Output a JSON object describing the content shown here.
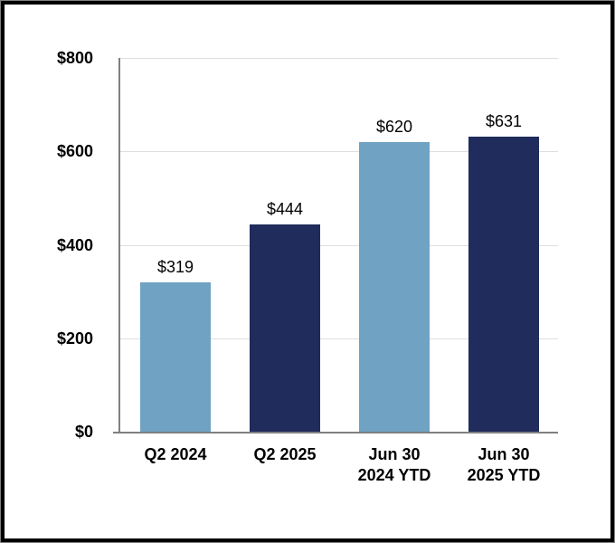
{
  "chart_data": {
    "type": "bar",
    "categories": [
      "Q2 2024",
      "Q2 2025",
      "Jun 30\n2024 YTD",
      "Jun 30\n2025 YTD"
    ],
    "values": [
      319,
      444,
      620,
      631
    ],
    "data_labels": [
      "$319",
      "$444",
      "$620",
      "$631"
    ],
    "bar_colors": [
      "#6FA2C3",
      "#1F2C5C",
      "#6FA2C3",
      "#1F2C5C"
    ],
    "y_ticks": [
      {
        "label": "$800",
        "value": 800
      },
      {
        "label": "$600",
        "value": 600
      },
      {
        "label": "$400",
        "value": 400
      },
      {
        "label": "$200",
        "value": 200
      },
      {
        "label": "$0",
        "value": 0
      }
    ],
    "ylim": [
      0,
      800
    ],
    "grid": true,
    "legend": false
  },
  "colors": {
    "bar_light_blue": "#6FA2C3",
    "bar_dark_navy": "#1F2C5C",
    "gridline": "#DEDEDE",
    "axis_line": "#808080",
    "text": "#000000",
    "background": "#FFFFFF",
    "frame_border": "#000000"
  }
}
